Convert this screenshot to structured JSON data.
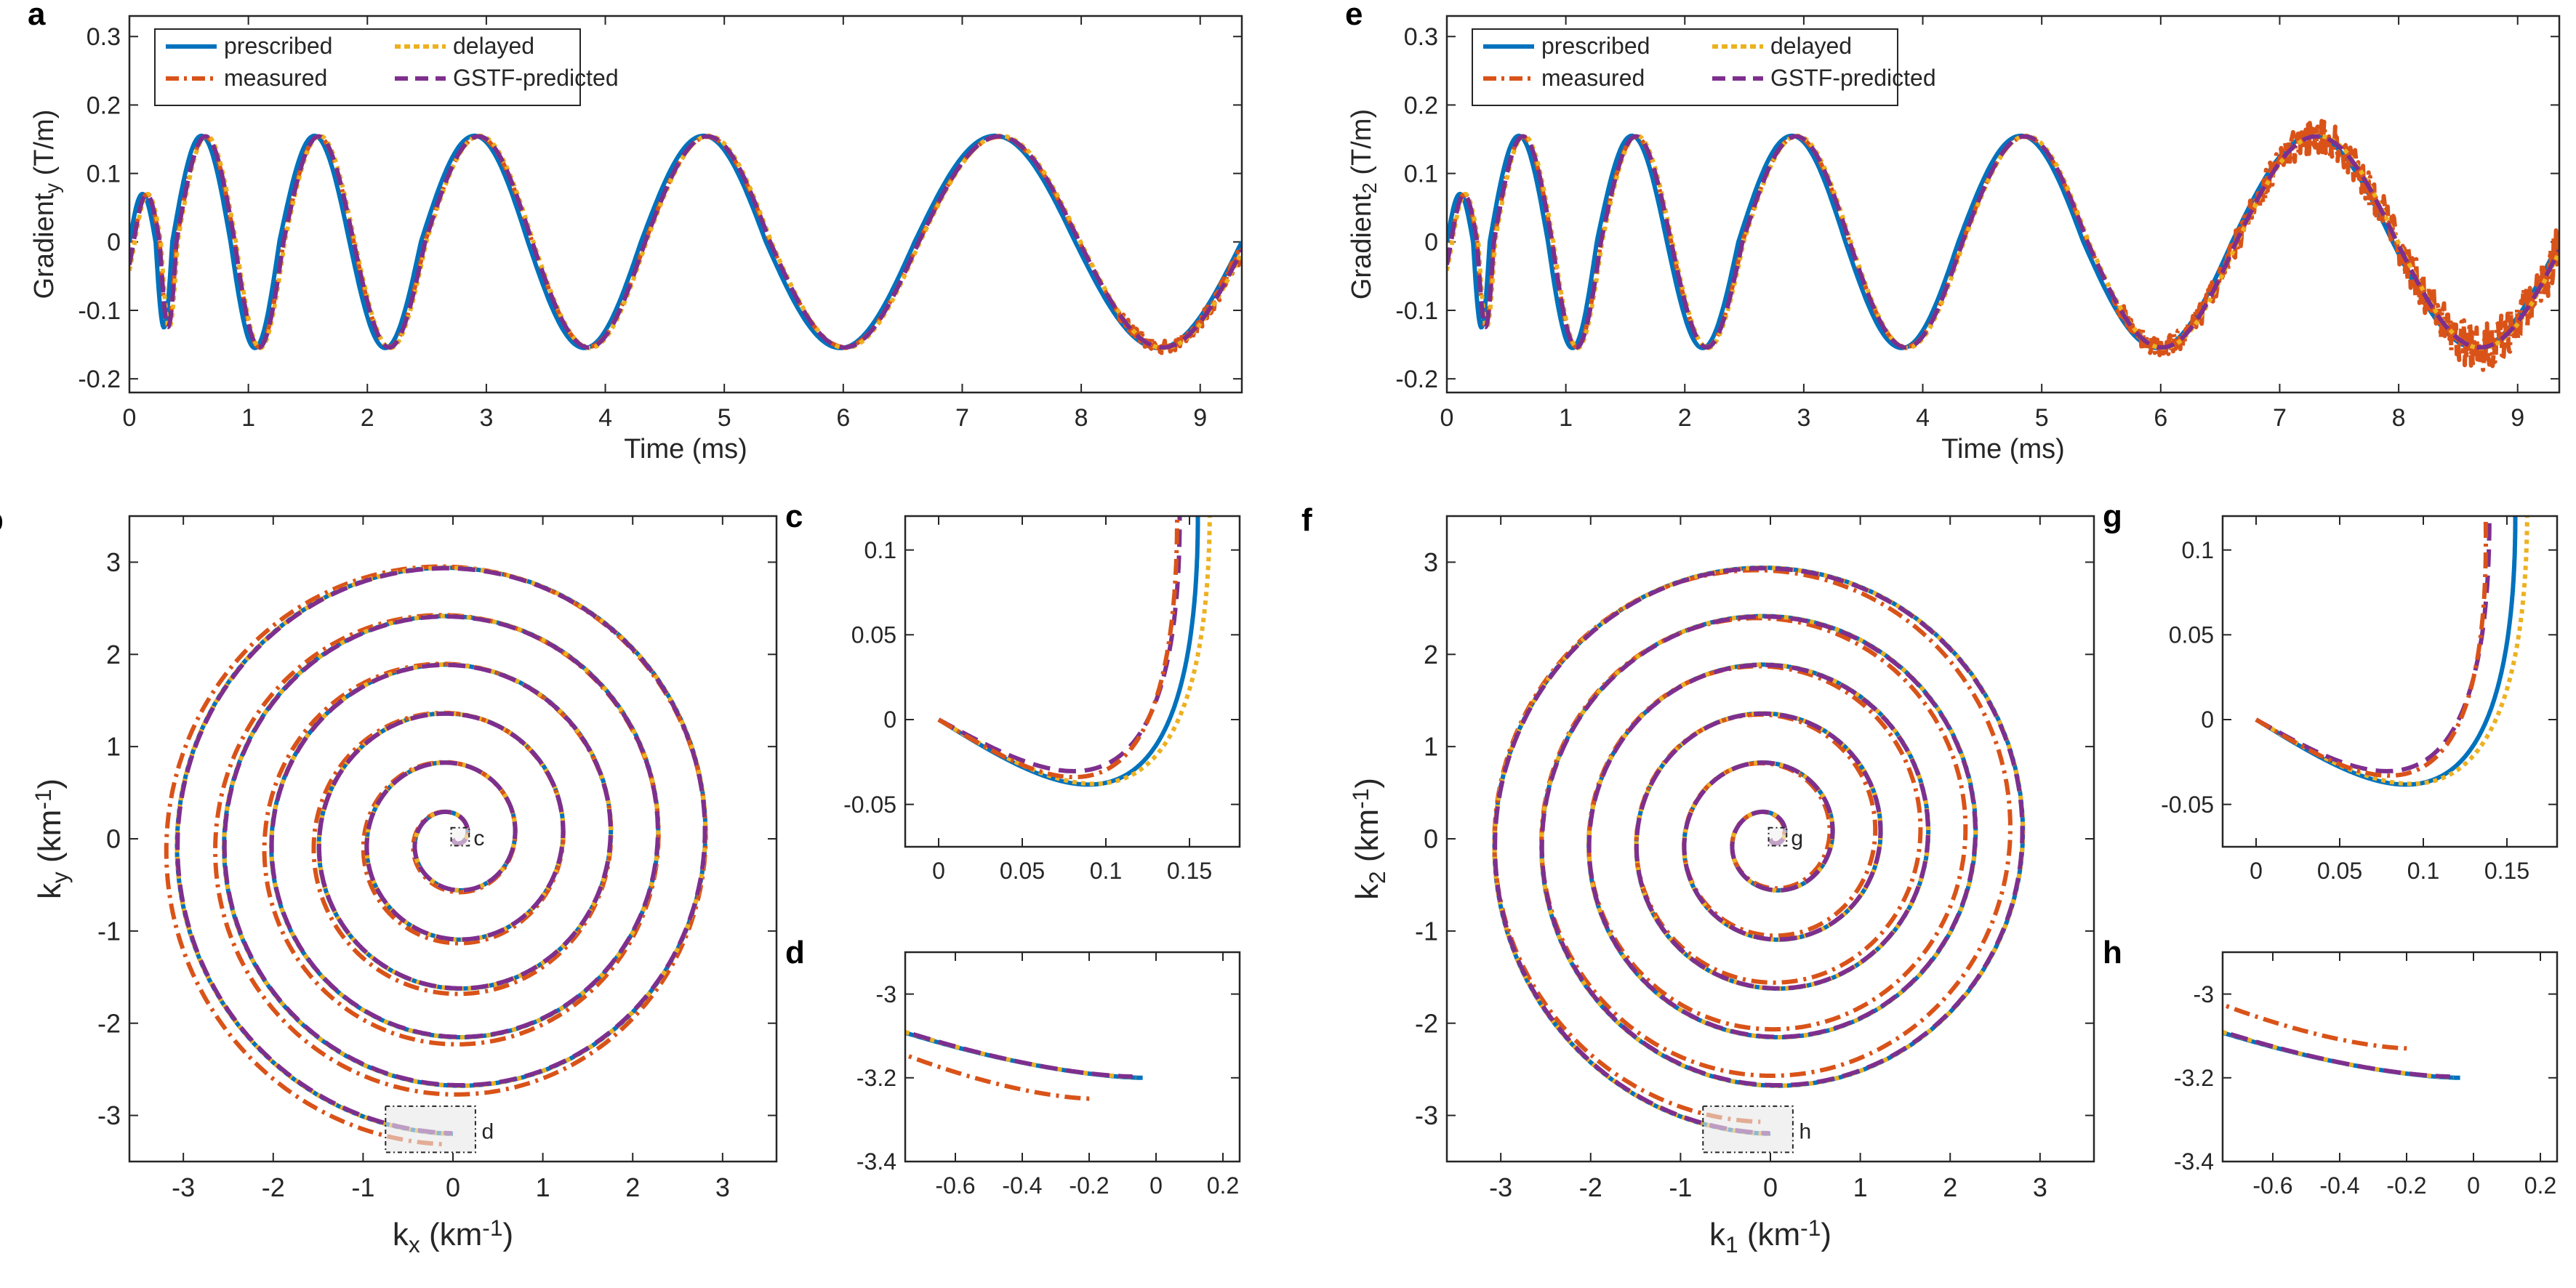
{
  "colors": {
    "prescribed": "#0072BD",
    "measured": "#D95319",
    "delayed": "#EDB120",
    "gstf": "#7E2F8E"
  },
  "chart_data": [
    {
      "panel": "a",
      "type": "line",
      "xlabel": "Time (ms)",
      "ylabel_main": "Gradient",
      "ylabel_sub": "y",
      "ylabel_unit": " (T/m)",
      "xlim": [
        0,
        9.35
      ],
      "ylim": [
        -0.22,
        0.33
      ],
      "xticks": [
        "0",
        "1",
        "2",
        "3",
        "4",
        "5",
        "6",
        "7",
        "8",
        "9"
      ],
      "yticks": [
        "-0.2",
        "-0.1",
        "0",
        "0.1",
        "0.2",
        "0.3"
      ],
      "legend": [
        "prescribed",
        "delayed",
        "measured",
        "GSTF-predicted"
      ],
      "series": [
        {
          "name": "prescribed",
          "waveform": "spiral gradient, amplitude 0.155 T/m, zero crossings decreasing frequency"
        },
        {
          "name": "measured",
          "noise_t_start": 8.3,
          "noise_amplitude": 0.008
        },
        {
          "name": "delayed",
          "delay_ms": 0.04
        },
        {
          "name": "GSTF-predicted"
        }
      ]
    },
    {
      "panel": "e",
      "type": "line",
      "xlabel": "Time (ms)",
      "ylabel_main": "Gradient",
      "ylabel_sub": "2",
      "ylabel_unit": " (T/m)",
      "xlim": [
        0,
        9.35
      ],
      "ylim": [
        -0.22,
        0.33
      ],
      "xticks": [
        "0",
        "1",
        "2",
        "3",
        "4",
        "5",
        "6",
        "7",
        "8",
        "9"
      ],
      "yticks": [
        "-0.2",
        "-0.1",
        "0",
        "0.1",
        "0.2",
        "0.3"
      ],
      "legend": [
        "prescribed",
        "delayed",
        "measured",
        "GSTF-predicted"
      ],
      "series": [
        {
          "name": "prescribed"
        },
        {
          "name": "measured",
          "noise_t_start": 5.6,
          "noise_amplitude": 0.012
        },
        {
          "name": "delayed"
        },
        {
          "name": "GSTF-predicted"
        }
      ]
    },
    {
      "panel": "b",
      "type": "line",
      "xlabel_main": "k",
      "xlabel_sub": "x",
      "xlabel_unit": " (km",
      "xlabel_sup": "-1",
      "xlabel_close": ")",
      "ylabel_main": "k",
      "ylabel_sub": "y",
      "ylabel_unit": " (km",
      "ylabel_sup": "-1",
      "ylabel_close": ")",
      "xlim": [
        -3.6,
        3.6
      ],
      "ylim": [
        -3.5,
        3.5
      ],
      "xticks": [
        "-3",
        "-2",
        "-1",
        "0",
        "1",
        "2",
        "3"
      ],
      "yticks": [
        "-3",
        "-2",
        "-1",
        "0",
        "1",
        "2",
        "3"
      ],
      "spiral_turns": 6,
      "spiral_max_radius": 3.2,
      "zoom_boxes": [
        {
          "label": "c"
        },
        {
          "label": "d"
        }
      ]
    },
    {
      "panel": "f",
      "type": "line",
      "xlabel_main": "k",
      "xlabel_sub": "1",
      "xlabel_unit": " (km",
      "xlabel_sup": "-1",
      "xlabel_close": ")",
      "ylabel_main": "k",
      "ylabel_sub": "2",
      "ylabel_unit": " (km",
      "ylabel_sup": "-1",
      "ylabel_close": ")",
      "xlim": [
        -3.6,
        3.6
      ],
      "ylim": [
        -3.5,
        3.5
      ],
      "xticks": [
        "-3",
        "-2",
        "-1",
        "0",
        "1",
        "2",
        "3"
      ],
      "yticks": [
        "-3",
        "-2",
        "-1",
        "0",
        "1",
        "2",
        "3"
      ],
      "spiral_turns": 6,
      "spiral_max_radius": 3.2,
      "zoom_boxes": [
        {
          "label": "g"
        },
        {
          "label": "h"
        }
      ]
    },
    {
      "panel": "c",
      "type": "line",
      "xlim": [
        -0.02,
        0.18
      ],
      "ylim": [
        -0.075,
        0.12
      ],
      "xticks": [
        "0",
        "0.05",
        "0.1",
        "0.15"
      ],
      "yticks": [
        "-0.05",
        "0",
        "0.05",
        "0.1"
      ]
    },
    {
      "panel": "g",
      "type": "line",
      "xlim": [
        -0.02,
        0.18
      ],
      "ylim": [
        -0.075,
        0.12
      ],
      "xticks": [
        "0",
        "0.05",
        "0.1",
        "0.15"
      ],
      "yticks": [
        "-0.05",
        "0",
        "0.05",
        "0.1"
      ]
    },
    {
      "panel": "d",
      "type": "line",
      "xlim": [
        -0.75,
        0.25
      ],
      "ylim": [
        -3.4,
        -2.9
      ],
      "xticks": [
        "-0.6",
        "-0.4",
        "-0.2",
        "0",
        "0.2"
      ],
      "yticks": [
        "-3",
        "-3.2",
        "-3.4"
      ],
      "end_points": {
        "prescribed": [
          -0.04,
          -3.2
        ],
        "measured": [
          -0.19,
          -3.25
        ]
      }
    },
    {
      "panel": "h",
      "type": "line",
      "xlim": [
        -0.75,
        0.25
      ],
      "ylim": [
        -3.4,
        -2.9
      ],
      "xticks": [
        "-0.6",
        "-0.4",
        "-0.2",
        "0",
        "0.2"
      ],
      "yticks": [
        "-3",
        "-3.2",
        "-3.4"
      ],
      "end_points": {
        "prescribed": [
          -0.04,
          -3.2
        ],
        "measured": [
          -0.19,
          -3.13
        ]
      }
    }
  ]
}
